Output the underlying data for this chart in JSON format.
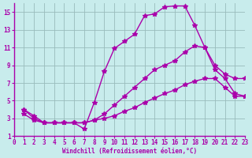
{
  "background_color": "#c8ecec",
  "line_color": "#aa00aa",
  "grid_color": "#99bbbb",
  "xlabel": "Windchill (Refroidissement éolien,°C)",
  "xlim": [
    0,
    23
  ],
  "ylim": [
    1,
    16
  ],
  "yticks": [
    1,
    3,
    5,
    7,
    9,
    11,
    13,
    15
  ],
  "xticks": [
    0,
    1,
    2,
    3,
    4,
    5,
    6,
    7,
    8,
    9,
    10,
    11,
    12,
    13,
    14,
    15,
    16,
    17,
    18,
    19,
    20,
    21,
    22,
    23
  ],
  "series1_x": [
    1,
    2,
    3,
    4,
    5,
    6,
    7,
    8,
    9,
    10,
    11,
    12,
    13,
    14,
    15,
    16,
    17,
    18,
    19,
    20,
    21,
    22,
    23
  ],
  "series1_y": [
    4.0,
    3.3,
    2.5,
    2.5,
    2.5,
    2.5,
    1.8,
    4.8,
    8.3,
    10.9,
    11.7,
    12.5,
    14.6,
    14.8,
    15.6,
    15.7,
    15.7,
    13.5,
    11.0,
    8.5,
    7.5,
    5.8,
    5.5
  ],
  "series2_x": [
    1,
    2,
    3,
    4,
    5,
    6,
    7,
    8,
    9,
    10,
    11,
    12,
    13,
    14,
    15,
    16,
    17,
    18,
    19,
    20,
    21,
    22,
    23
  ],
  "series2_y": [
    4.0,
    3.0,
    2.5,
    2.5,
    2.5,
    2.5,
    2.5,
    2.8,
    3.5,
    4.5,
    5.5,
    6.5,
    7.5,
    8.5,
    9.0,
    9.5,
    10.5,
    11.2,
    11.0,
    9.0,
    8.0,
    7.5,
    7.5
  ],
  "series3_x": [
    1,
    2,
    3,
    4,
    5,
    6,
    7,
    8,
    9,
    10,
    11,
    12,
    13,
    14,
    15,
    16,
    17,
    18,
    19,
    20,
    21,
    22,
    23
  ],
  "series3_y": [
    3.5,
    2.8,
    2.5,
    2.5,
    2.5,
    2.5,
    2.5,
    2.8,
    3.0,
    3.3,
    3.8,
    4.2,
    4.8,
    5.3,
    5.8,
    6.2,
    6.8,
    7.2,
    7.5,
    7.5,
    6.5,
    5.5,
    5.5
  ],
  "marker": "*",
  "marker_size": 4,
  "linewidth": 1.0
}
